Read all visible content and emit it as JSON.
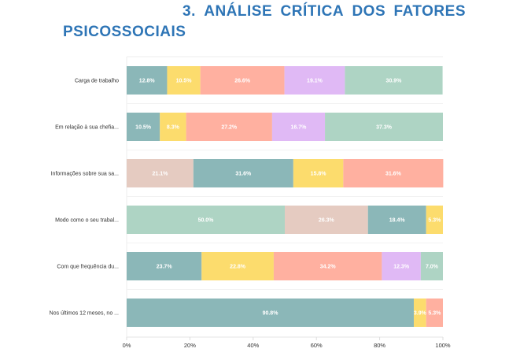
{
  "heading": {
    "number": "3.",
    "words": [
      "ANÁLISE",
      "CRÍTICA",
      "DOS",
      "FATORES"
    ],
    "line2": "PSICOSSOCIAIS"
  },
  "colors": {
    "title": "#2e75b6",
    "teal": "#8bb7b8",
    "yellow": "#fcdc6d",
    "salmon": "#ffb0a0",
    "lavender": "#e0b9f5",
    "mint": "#aed4c4",
    "beige": "#e5cbc1"
  },
  "chart_data": {
    "type": "bar",
    "orientation": "horizontal",
    "stacked": true,
    "title": "",
    "xlabel": "",
    "ylabel": "",
    "xlim": [
      0,
      100
    ],
    "x_ticks": [
      "0%",
      "20%",
      "40%",
      "60%",
      "80%",
      "100%"
    ],
    "grid": true,
    "legend": "none",
    "categories": [
      "Carga de trabalho",
      "Em relação à sua chefia...",
      "Informações sobre sua sa...",
      "Modo como o seu trabal...",
      "Com que frequência du...",
      "Nos últimos 12 meses, no ..."
    ],
    "rows": [
      {
        "segments": [
          {
            "value": 12.8,
            "label": "12.8%",
            "color": "#8bb7b8"
          },
          {
            "value": 10.5,
            "label": "10.5%",
            "color": "#fcdc6d"
          },
          {
            "value": 26.6,
            "label": "26.6%",
            "color": "#ffb0a0"
          },
          {
            "value": 19.1,
            "label": "19.1%",
            "color": "#e0b9f5"
          },
          {
            "value": 30.9,
            "label": "30.9%",
            "color": "#aed4c4"
          }
        ]
      },
      {
        "segments": [
          {
            "value": 10.5,
            "label": "10.5%",
            "color": "#8bb7b8"
          },
          {
            "value": 8.3,
            "label": "8.3%",
            "color": "#fcdc6d"
          },
          {
            "value": 27.2,
            "label": "27.2%",
            "color": "#ffb0a0"
          },
          {
            "value": 16.7,
            "label": "16.7%",
            "color": "#e0b9f5"
          },
          {
            "value": 37.3,
            "label": "37.3%",
            "color": "#aed4c4"
          }
        ]
      },
      {
        "segments": [
          {
            "value": 21.1,
            "label": "21.1%",
            "color": "#e5cbc1"
          },
          {
            "value": 31.6,
            "label": "31.6%",
            "color": "#8bb7b8"
          },
          {
            "value": 15.8,
            "label": "15.8%",
            "color": "#fcdc6d"
          },
          {
            "value": 31.6,
            "label": "31.6%",
            "color": "#ffb0a0"
          }
        ]
      },
      {
        "segments": [
          {
            "value": 50.0,
            "label": "50.0%",
            "color": "#aed4c4"
          },
          {
            "value": 26.3,
            "label": "26.3%",
            "color": "#e5cbc1"
          },
          {
            "value": 18.4,
            "label": "18.4%",
            "color": "#8bb7b8"
          },
          {
            "value": 5.3,
            "label": "5.3%",
            "color": "#fcdc6d"
          }
        ]
      },
      {
        "segments": [
          {
            "value": 23.7,
            "label": "23.7%",
            "color": "#8bb7b8"
          },
          {
            "value": 22.8,
            "label": "22.8%",
            "color": "#fcdc6d"
          },
          {
            "value": 34.2,
            "label": "34.2%",
            "color": "#ffb0a0"
          },
          {
            "value": 12.3,
            "label": "12.3%",
            "color": "#e0b9f5"
          },
          {
            "value": 7.0,
            "label": "7.0%",
            "color": "#aed4c4"
          }
        ]
      },
      {
        "segments": [
          {
            "value": 90.8,
            "label": "90.8%",
            "color": "#8bb7b8"
          },
          {
            "value": 3.9,
            "label": "3.9%",
            "color": "#fcdc6d"
          },
          {
            "value": 5.3,
            "label": "5.3%",
            "color": "#ffb0a0"
          }
        ]
      }
    ]
  }
}
